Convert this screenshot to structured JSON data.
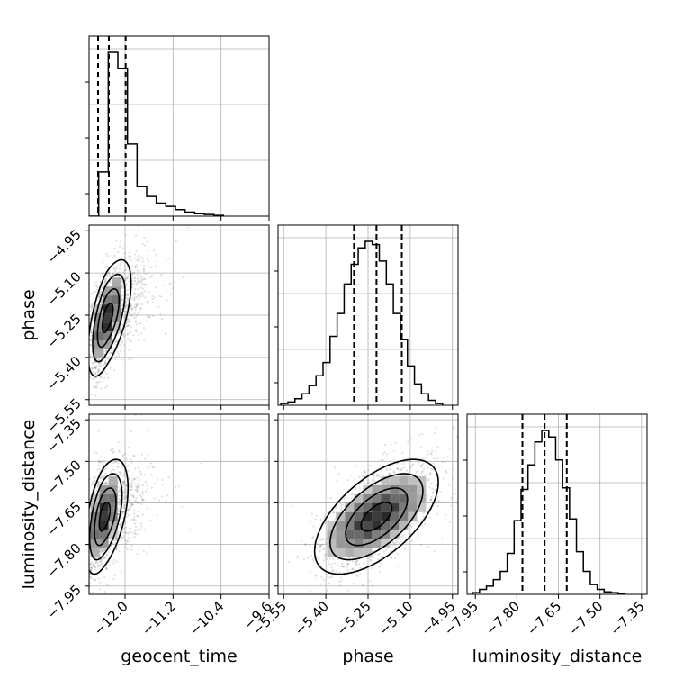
{
  "chart_data": {
    "type": "corner",
    "parameters": [
      {
        "name": "geocent_time",
        "xlabel": "geocent_time",
        "range": [
          -12.6,
          -9.6
        ],
        "ticks": [
          -12.0,
          -11.2,
          -10.4,
          -9.6
        ],
        "tick_labels": [
          "−12.0",
          "−11.2",
          "−10.4",
          "−9.6"
        ],
        "quantiles": [
          -12.45,
          -12.27,
          -11.99
        ]
      },
      {
        "name": "phase",
        "xlabel": "phase",
        "ylabel": "phase",
        "range": [
          -5.57,
          -4.93
        ],
        "ticks": [
          -5.55,
          -5.4,
          -5.25,
          -5.1,
          -4.95
        ],
        "tick_labels": [
          "−5.55",
          "−5.40",
          "−5.25",
          "−5.10",
          "−4.95"
        ],
        "quantiles": [
          -5.3,
          -5.22,
          -5.13
        ]
      },
      {
        "name": "luminosity_distance",
        "xlabel": "luminosity_distance",
        "ylabel": "luminosity_distance",
        "range": [
          -7.98,
          -7.33
        ],
        "ticks": [
          -7.95,
          -7.8,
          -7.65,
          -7.5,
          -7.35
        ],
        "tick_labels": [
          "−7.95",
          "−7.80",
          "−7.65",
          "−7.50",
          "−7.35"
        ],
        "quantiles": [
          -7.78,
          -7.7,
          -7.62
        ]
      }
    ],
    "histograms": [
      {
        "parameter": "geocent_time",
        "bin_edges": [
          -12.6,
          -12.44,
          -12.28,
          -12.12,
          -11.96,
          -11.8,
          -11.64,
          -11.48,
          -11.32,
          -11.16,
          -11.0,
          -10.84,
          -10.68,
          -10.52,
          -10.36
        ],
        "counts": [
          0.0,
          0.27,
          1.0,
          0.9,
          0.44,
          0.18,
          0.12,
          0.08,
          0.06,
          0.04,
          0.025,
          0.015,
          0.01,
          0.005
        ]
      },
      {
        "parameter": "phase",
        "bin_edges": [
          -5.56,
          -5.535,
          -5.51,
          -5.485,
          -5.46,
          -5.435,
          -5.41,
          -5.385,
          -5.36,
          -5.335,
          -5.31,
          -5.285,
          -5.26,
          -5.235,
          -5.21,
          -5.185,
          -5.16,
          -5.135,
          -5.11,
          -5.085,
          -5.06,
          -5.035,
          -5.01,
          -4.985
        ],
        "counts": [
          0.01,
          0.02,
          0.04,
          0.07,
          0.12,
          0.18,
          0.26,
          0.42,
          0.56,
          0.74,
          0.86,
          0.96,
          1.0,
          0.98,
          0.88,
          0.74,
          0.56,
          0.4,
          0.24,
          0.13,
          0.07,
          0.03,
          0.01
        ]
      },
      {
        "parameter": "luminosity_distance",
        "bin_edges": [
          -7.96,
          -7.935,
          -7.91,
          -7.885,
          -7.86,
          -7.835,
          -7.81,
          -7.785,
          -7.76,
          -7.735,
          -7.71,
          -7.685,
          -7.66,
          -7.635,
          -7.61,
          -7.585,
          -7.56,
          -7.535,
          -7.51,
          -7.485,
          -7.46,
          -7.435,
          -7.41
        ],
        "counts": [
          0.01,
          0.03,
          0.05,
          0.09,
          0.14,
          0.25,
          0.45,
          0.64,
          0.79,
          0.93,
          1.0,
          0.96,
          0.82,
          0.65,
          0.46,
          0.26,
          0.14,
          0.06,
          0.03,
          0.015,
          0.01,
          0.005
        ]
      }
    ],
    "pairs": [
      {
        "x": "geocent_time",
        "y": "phase",
        "center": [
          -12.3,
          -5.26
        ],
        "sd": [
          0.16,
          0.09
        ],
        "correlation": 0.6,
        "contour_levels_sigma": [
          0.5,
          1.0,
          1.5,
          2.0
        ],
        "skew_x": "right"
      },
      {
        "x": "geocent_time",
        "y": "luminosity_distance",
        "center": [
          -12.35,
          -7.7
        ],
        "sd": [
          0.16,
          0.09
        ],
        "correlation": 0.5,
        "contour_levels_sigma": [
          0.5,
          1.0,
          1.5,
          2.0
        ],
        "skew_x": "right"
      },
      {
        "x": "phase",
        "y": "luminosity_distance",
        "center": [
          -5.22,
          -7.7
        ],
        "sd": [
          0.11,
          0.09
        ],
        "correlation": 0.6,
        "contour_levels_sigma": [
          0.5,
          1.0,
          1.5,
          2.0
        ],
        "skew_x": "none"
      }
    ],
    "grid": true,
    "quantile_line_style": "dashed"
  }
}
